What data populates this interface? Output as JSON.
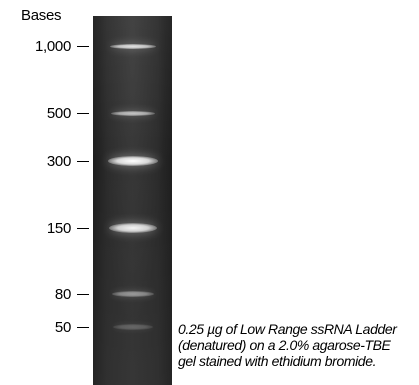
{
  "axis_title": "Bases",
  "markers": [
    {
      "label": "1,000",
      "bases": 1000,
      "intensity": 0.85
    },
    {
      "label": "500",
      "bases": 500,
      "intensity": 0.7
    },
    {
      "label": "300",
      "bases": 300,
      "intensity": 1.0
    },
    {
      "label": "150",
      "bases": 150,
      "intensity": 0.95
    },
    {
      "label": "80",
      "bases": 80,
      "intensity": 0.5
    },
    {
      "label": "50",
      "bases": 50,
      "intensity": 0.25
    }
  ],
  "caption": {
    "lines": [
      "0.25 µg of Low Range ssRNA Ladder",
      "(denatured) on a 2.0% agarose-TBE",
      "gel stained with ethidium bromide."
    ]
  },
  "colors": {
    "gel": "#2b2b2b",
    "band": "#ffffff",
    "text": "#000000"
  }
}
